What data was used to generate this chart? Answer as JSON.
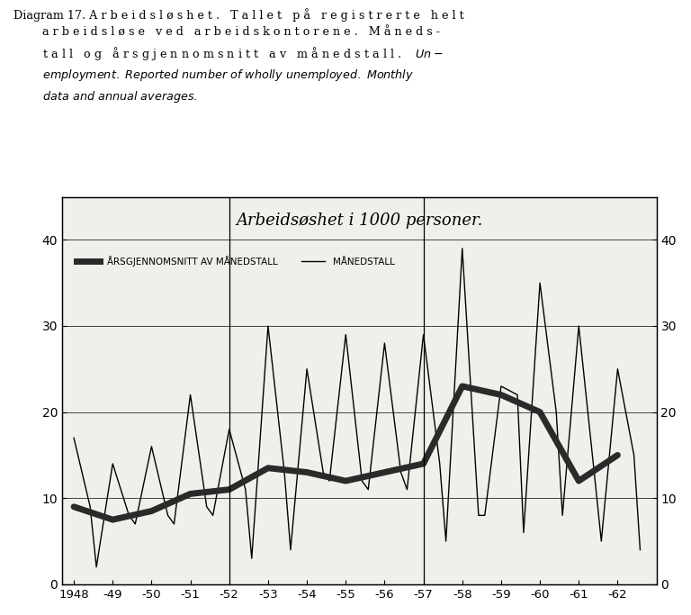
{
  "title": "Arbeidsøshet i 1000 personer.",
  "legend_thick": "ÅRSGJENNOMSNITT AV MÅNEDSTALL",
  "legend_thin": "MÅNEDSTALL",
  "ylim": [
    0,
    45
  ],
  "yticks": [
    0,
    10,
    20,
    30,
    40
  ],
  "xtick_labels": [
    "1948",
    "-49",
    "-50",
    "-51",
    "-52",
    "-53",
    "-54",
    "-55",
    "-56",
    "-57",
    "-58",
    "-59",
    "-60",
    "-61",
    "-62"
  ],
  "vline_years": [
    1952.0,
    1957.0
  ],
  "background_color": "#f0f0eb",
  "monthly_x": [
    1948.0,
    1948.42,
    1948.58,
    1949.0,
    1949.42,
    1949.58,
    1950.0,
    1950.42,
    1950.58,
    1951.0,
    1951.42,
    1951.58,
    1952.0,
    1952.42,
    1952.58,
    1953.0,
    1953.42,
    1953.58,
    1954.0,
    1954.42,
    1954.58,
    1955.0,
    1955.42,
    1955.58,
    1956.0,
    1956.42,
    1956.58,
    1957.0,
    1957.42,
    1957.58,
    1958.0,
    1958.42,
    1958.58,
    1959.0,
    1959.42,
    1959.58,
    1960.0,
    1960.42,
    1960.58,
    1961.0,
    1961.42,
    1961.58,
    1962.0,
    1962.42,
    1962.58
  ],
  "monthly_y": [
    17,
    9,
    2,
    14,
    8,
    7,
    16,
    8,
    7,
    22,
    9,
    8,
    18,
    11,
    3,
    30,
    13,
    4,
    25,
    13,
    12,
    29,
    12,
    11,
    28,
    13,
    11,
    29,
    14,
    5,
    39,
    8,
    8,
    23,
    22,
    6,
    35,
    20,
    8,
    30,
    12,
    5,
    25,
    15,
    4
  ],
  "annual_x": [
    1948,
    1949,
    1950,
    1951,
    1952,
    1953,
    1954,
    1955,
    1956,
    1957,
    1958,
    1959,
    1960,
    1961,
    1962
  ],
  "annual_y": [
    9.0,
    7.5,
    8.5,
    10.5,
    11.0,
    13.5,
    13.0,
    12.0,
    13.0,
    14.0,
    23.0,
    22.0,
    20.0,
    12.0,
    15.0
  ]
}
